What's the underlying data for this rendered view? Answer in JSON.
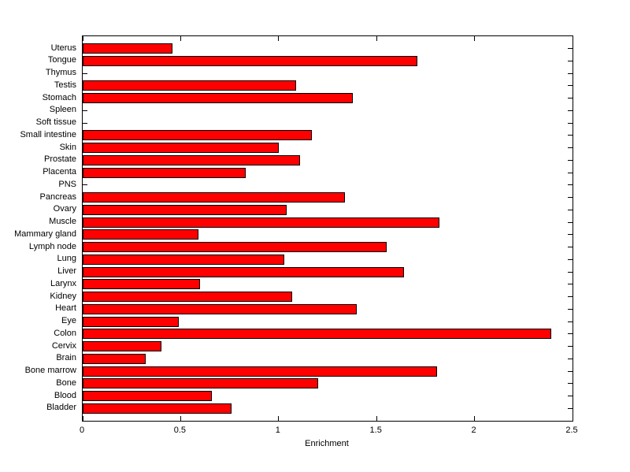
{
  "chart_data": {
    "type": "bar",
    "orientation": "horizontal",
    "title": "",
    "xlabel": "Enrichment",
    "ylabel": "",
    "xlim": [
      0,
      2.5
    ],
    "xticks": [
      0,
      0.5,
      1,
      1.5,
      2,
      2.5
    ],
    "xtick_labels": [
      "0",
      "0.5",
      "1",
      "1.5",
      "2",
      "2.5"
    ],
    "grid": false,
    "legend": null,
    "bar_color": "#ff0000",
    "bar_edge_color": "#000000",
    "background_color": "#ffffff",
    "categories": [
      "Uterus",
      "Tongue",
      "Thymus",
      "Testis",
      "Stomach",
      "Spleen",
      "Soft tissue",
      "Small intestine",
      "Skin",
      "Prostate",
      "Placenta",
      "PNS",
      "Pancreas",
      "Ovary",
      "Muscle",
      "Mammary gland",
      "Lymph node",
      "Lung",
      "Liver",
      "Larynx",
      "Kidney",
      "Heart",
      "Eye",
      "Colon",
      "Cervix",
      "Brain",
      "Bone marrow",
      "Bone",
      "Blood",
      "Bladder"
    ],
    "values": [
      0.46,
      1.71,
      0,
      1.09,
      1.38,
      0,
      0,
      1.17,
      1.0,
      1.11,
      0.83,
      0,
      1.34,
      1.04,
      1.82,
      0.59,
      1.55,
      1.03,
      1.64,
      0.6,
      1.07,
      1.4,
      0.49,
      2.39,
      0.4,
      0.32,
      1.81,
      1.2,
      0.66,
      0.76
    ]
  }
}
